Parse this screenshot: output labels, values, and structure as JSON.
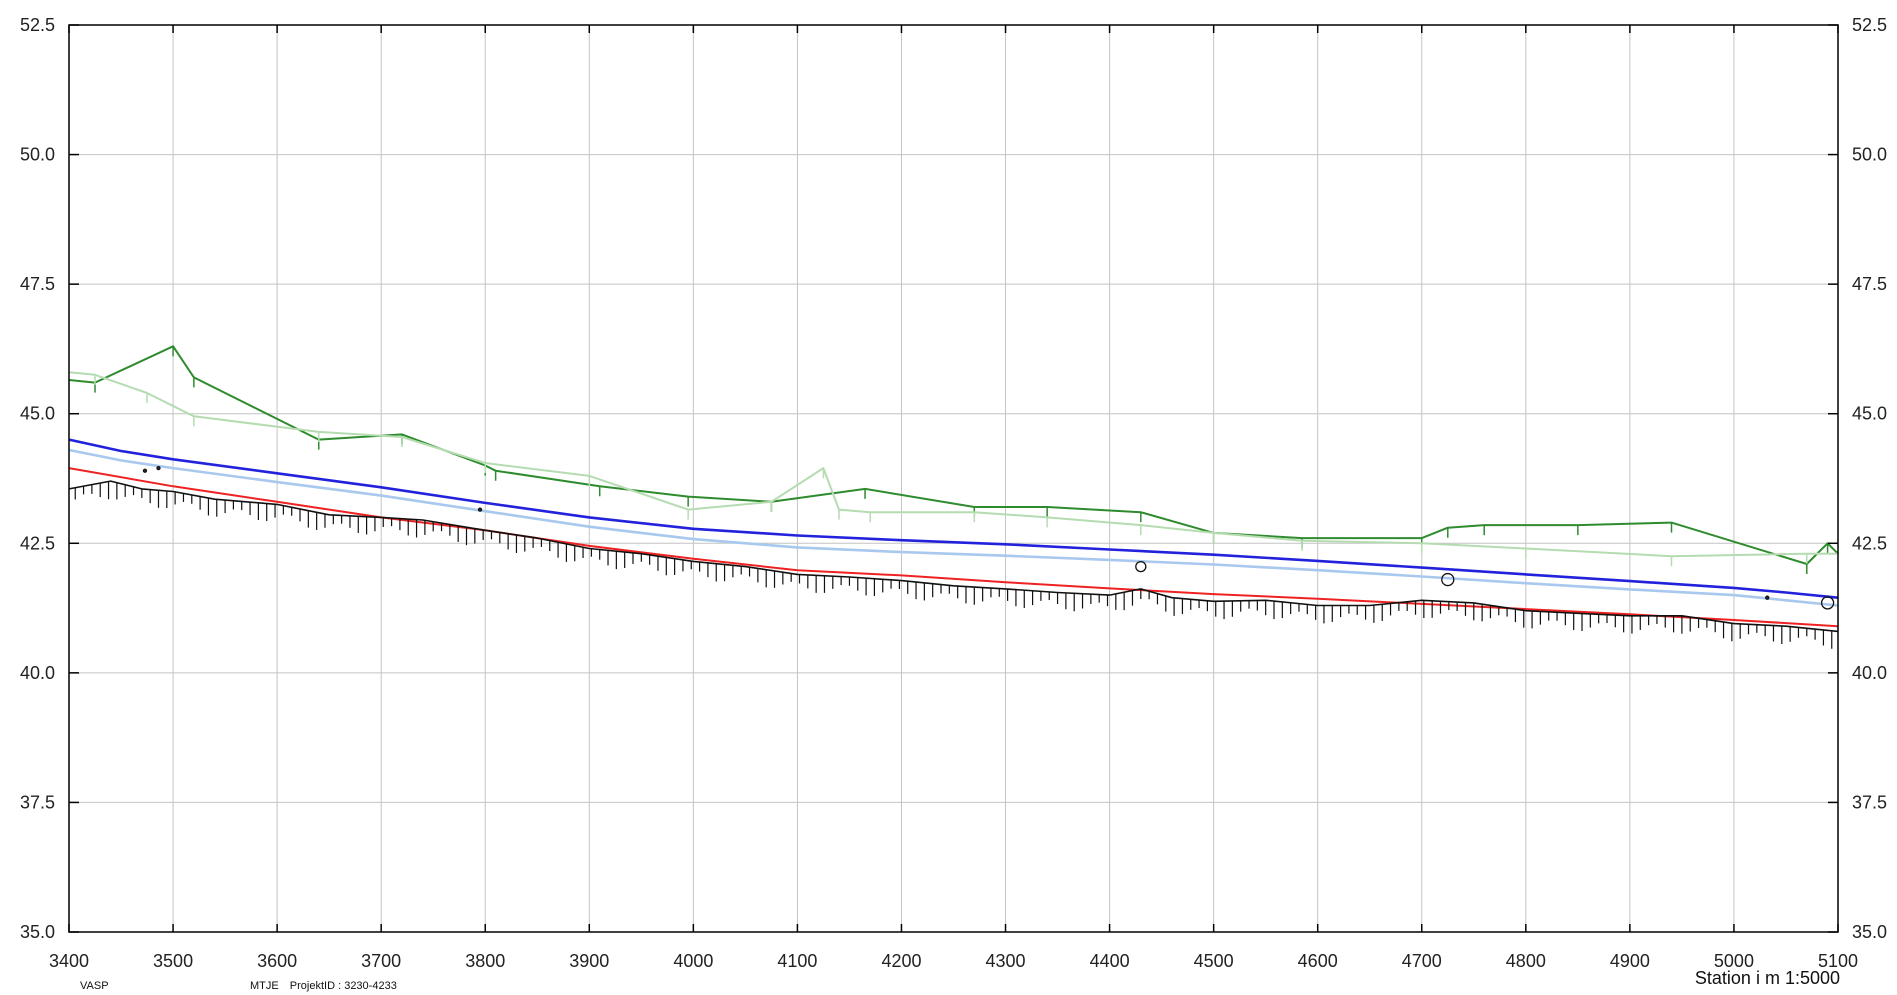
{
  "chart_data": {
    "type": "line",
    "title": "",
    "xlabel": "Station i m",
    "scale": "1:5000",
    "xlim": [
      3400,
      5100
    ],
    "ylim": [
      35.0,
      52.5
    ],
    "x_ticks": [
      "3400",
      "3500",
      "3600",
      "3700",
      "3800",
      "3900",
      "4000",
      "4100",
      "4200",
      "4300",
      "4400",
      "4500",
      "4600",
      "4700",
      "4800",
      "4900",
      "5000",
      "5100"
    ],
    "y_ticks": [
      "35.0",
      "37.5",
      "40.0",
      "42.5",
      "45.0",
      "47.5",
      "50.0",
      "52.5"
    ],
    "grid": true,
    "colors": {
      "dark_green": "#2e8b2e",
      "light_green": "#b5dcb0",
      "blue": "#2222dd",
      "light_blue": "#a8c8ee",
      "red": "#ee2222",
      "black": "#111111",
      "grid": "#c4c4c4"
    },
    "series": [
      {
        "key": "dark_green",
        "x": [
          3400,
          3425,
          3500,
          3520,
          3640,
          3720,
          3800,
          3810,
          3910,
          3995,
          4075,
          4165,
          4270,
          4340,
          4430,
          4500,
          4585,
          4700,
          4725,
          4760,
          4850,
          4940,
          5070,
          5090,
          5100
        ],
        "y": [
          45.65,
          45.6,
          46.3,
          45.7,
          44.5,
          44.6,
          44.0,
          43.9,
          43.6,
          43.4,
          43.3,
          43.55,
          43.2,
          43.2,
          43.1,
          42.7,
          42.6,
          42.6,
          42.8,
          42.85,
          42.85,
          42.9,
          42.1,
          42.5,
          42.3
        ]
      },
      {
        "key": "light_green",
        "x": [
          3400,
          3425,
          3475,
          3520,
          3640,
          3720,
          3800,
          3900,
          3995,
          4075,
          4125,
          4140,
          4170,
          4270,
          4340,
          4430,
          4500,
          4585,
          4700,
          4800,
          4940,
          5070,
          5100
        ],
        "y": [
          45.8,
          45.75,
          45.4,
          44.95,
          44.65,
          44.55,
          44.05,
          43.8,
          43.15,
          43.3,
          43.95,
          43.15,
          43.1,
          43.1,
          43.0,
          42.85,
          42.7,
          42.55,
          42.5,
          42.4,
          42.25,
          42.3,
          42.3
        ]
      },
      {
        "key": "blue",
        "x": [
          3400,
          3450,
          3500,
          3600,
          3700,
          3800,
          3900,
          4000,
          4100,
          4200,
          4300,
          4400,
          4500,
          4600,
          4700,
          4800,
          4900,
          5000,
          5050,
          5100
        ],
        "y": [
          44.5,
          44.28,
          44.12,
          43.85,
          43.58,
          43.28,
          43.0,
          42.78,
          42.65,
          42.56,
          42.48,
          42.38,
          42.28,
          42.16,
          42.03,
          41.9,
          41.77,
          41.64,
          41.55,
          41.45
        ]
      },
      {
        "key": "light_blue",
        "x": [
          3400,
          3450,
          3500,
          3600,
          3700,
          3800,
          3900,
          4000,
          4100,
          4200,
          4300,
          4400,
          4500,
          4600,
          4700,
          4800,
          4900,
          5000,
          5050,
          5100
        ],
        "y": [
          44.3,
          44.1,
          43.95,
          43.68,
          43.42,
          43.12,
          42.82,
          42.58,
          42.42,
          42.33,
          42.26,
          42.18,
          42.09,
          41.98,
          41.86,
          41.73,
          41.61,
          41.5,
          41.4,
          41.3
        ]
      },
      {
        "key": "red",
        "x": [
          3400,
          3500,
          3600,
          3700,
          3800,
          3900,
          4000,
          4100,
          4200,
          4300,
          4400,
          4500,
          4600,
          4700,
          4800,
          4900,
          5000,
          5100
        ],
        "y": [
          43.95,
          43.6,
          43.3,
          43.0,
          42.75,
          42.45,
          42.2,
          41.98,
          41.88,
          41.75,
          41.63,
          41.52,
          41.43,
          41.33,
          41.23,
          41.13,
          41.02,
          40.9
        ]
      },
      {
        "key": "black",
        "x": [
          3400,
          3440,
          3470,
          3500,
          3540,
          3600,
          3650,
          3700,
          3740,
          3800,
          3850,
          3900,
          3950,
          4000,
          4050,
          4100,
          4150,
          4200,
          4250,
          4300,
          4350,
          4400,
          4430,
          4460,
          4500,
          4550,
          4600,
          4650,
          4700,
          4750,
          4800,
          4850,
          4900,
          4950,
          5000,
          5050,
          5100
        ],
        "y": [
          43.55,
          43.7,
          43.55,
          43.5,
          43.35,
          43.25,
          43.05,
          43.0,
          42.95,
          42.75,
          42.6,
          42.4,
          42.3,
          42.15,
          42.05,
          41.9,
          41.85,
          41.78,
          41.68,
          41.62,
          41.55,
          41.5,
          41.62,
          41.45,
          41.38,
          41.4,
          41.3,
          41.3,
          41.4,
          41.35,
          41.2,
          41.15,
          41.1,
          41.1,
          40.95,
          40.9,
          40.8
        ]
      }
    ],
    "points": [
      {
        "x": 4430,
        "y": 42.05,
        "r": 5
      },
      {
        "x": 4725,
        "y": 41.8,
        "r": 6
      },
      {
        "x": 5090,
        "y": 41.35,
        "r": 6
      },
      {
        "x": 3486,
        "y": 43.95,
        "r": 1.5
      },
      {
        "x": 3473,
        "y": 43.9,
        "r": 1.5
      },
      {
        "x": 3795,
        "y": 43.15,
        "r": 1.5
      },
      {
        "x": 5032,
        "y": 41.45,
        "r": 1.5
      }
    ]
  },
  "footer": {
    "left": "VASP",
    "mid": "MTJE",
    "project": "ProjektID : 3230-4233",
    "station_label": "Station i m  1:5000"
  }
}
